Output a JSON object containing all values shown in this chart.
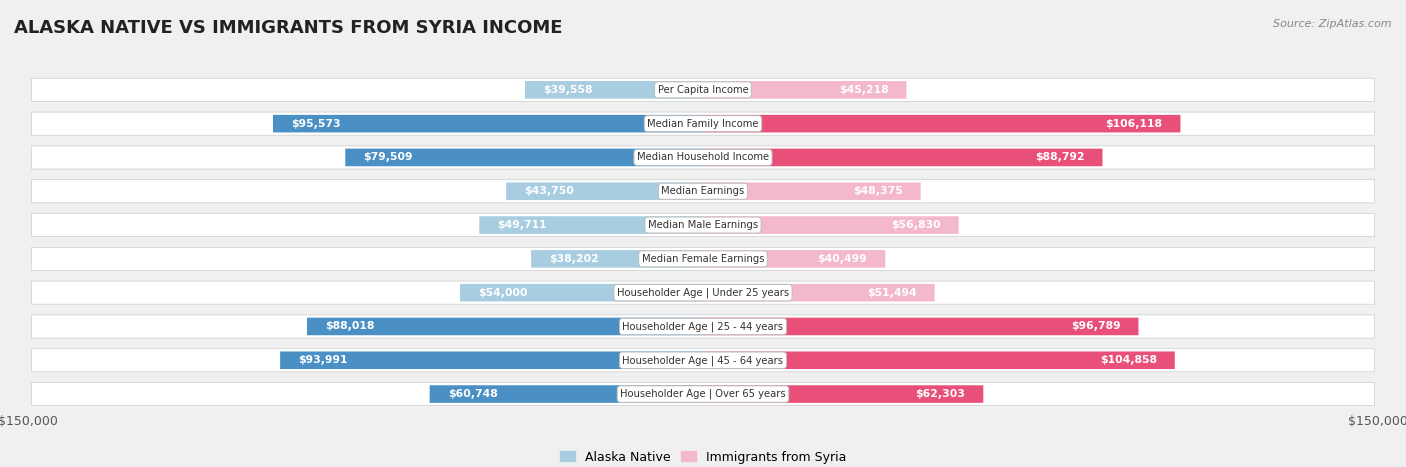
{
  "title": "ALASKA NATIVE VS IMMIGRANTS FROM SYRIA INCOME",
  "source": "Source: ZipAtlas.com",
  "categories": [
    "Per Capita Income",
    "Median Family Income",
    "Median Household Income",
    "Median Earnings",
    "Median Male Earnings",
    "Median Female Earnings",
    "Householder Age | Under 25 years",
    "Householder Age | 25 - 44 years",
    "Householder Age | 45 - 64 years",
    "Householder Age | Over 65 years"
  ],
  "alaska_native": [
    39558,
    95573,
    79509,
    43750,
    49711,
    38202,
    54000,
    88018,
    93991,
    60748
  ],
  "immigrants_syria": [
    45218,
    106118,
    88792,
    48375,
    56830,
    40499,
    51494,
    96789,
    104858,
    62303
  ],
  "alaska_labels": [
    "$39,558",
    "$95,573",
    "$79,509",
    "$43,750",
    "$49,711",
    "$38,202",
    "$54,000",
    "$88,018",
    "$93,991",
    "$60,748"
  ],
  "syria_labels": [
    "$45,218",
    "$106,118",
    "$88,792",
    "$48,375",
    "$56,830",
    "$40,499",
    "$51,494",
    "$96,789",
    "$104,858",
    "$62,303"
  ],
  "alaska_color_light": "#a8cce0",
  "alaska_color_dark": "#4a90c4",
  "syria_color_light": "#f4b8cc",
  "syria_color_dark": "#e8507a",
  "threshold": 60000,
  "max_value": 150000,
  "bg_color": "#f0f0f0",
  "title_color": "#222222",
  "tick_label_color": "#555555",
  "label_outside_color": "#444444",
  "label_inside_color": "#ffffff"
}
